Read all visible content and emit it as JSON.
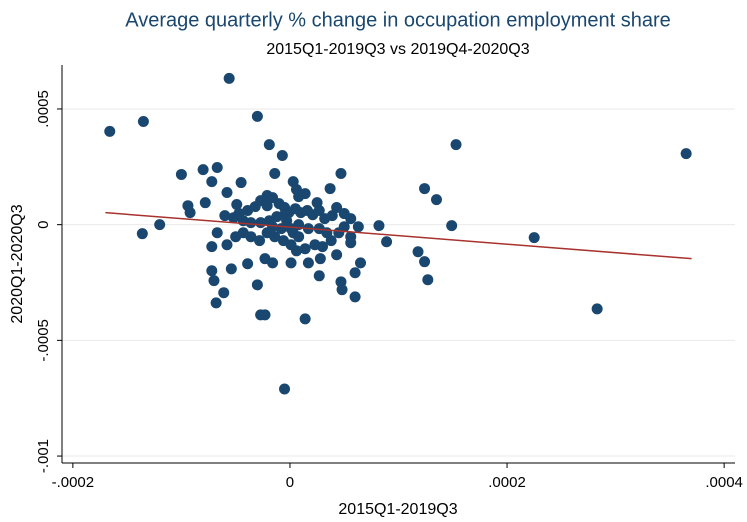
{
  "chart_data": {
    "type": "scatter",
    "title": "Average quarterly % change in occupation employment share",
    "subtitle": "2015Q1-2019Q3 vs 2019Q4-2020Q3",
    "x_label": "2015Q1-2019Q3",
    "y_label": "2020Q1-2020Q3",
    "color": "#1a476f",
    "x": [
      -0.000166,
      -0.000135,
      -0.000136,
      -0.00012,
      -5.6e-05,
      -3e-05,
      -0.0001,
      -8e-05,
      -6.7e-05,
      -7.2e-05,
      -4.5e-05,
      -5.8e-05,
      -1.9e-05,
      -7e-06,
      3e-06,
      -1.4e-05,
      -2.1e-05,
      6e-06,
      4.7e-05,
      3.7e-05,
      1.4e-05,
      -9.4e-05,
      -9.2e-05,
      -7.8e-05,
      -6e-05,
      -5.2e-05,
      -4.7e-05,
      -3.9e-05,
      -3.2e-05,
      -2.7e-05,
      -2.1e-05,
      -1.6e-05,
      -1e-05,
      -5e-06,
      -1e-06,
      5e-06,
      1e-05,
      1.6e-05,
      2.1e-05,
      2.7e-05,
      3.2e-05,
      3.9e-05,
      4.3e-05,
      5e-05,
      5.6e-05,
      5e-05,
      4.5e-05,
      3.8e-05,
      3e-05,
      2.3e-05,
      1.4e-05,
      6e-06,
      1e-06,
      -6e-06,
      -1.4e-05,
      -2.1e-05,
      -2.8e-05,
      -3.6e-05,
      -4.3e-05,
      -5e-05,
      -5.8e-05,
      -6.7e-05,
      -7.2e-05,
      -5.4e-05,
      -3.9e-05,
      -2.3e-05,
      -1.6e-05,
      1e-06,
      1.7e-05,
      2.8e-05,
      4.3e-05,
      6.3e-05,
      5.6e-05,
      5.6e-05,
      8.2e-05,
      8.9e-05,
      6.5e-05,
      6e-05,
      4.7e-05,
      4.8e-05,
      2.7e-05,
      6e-05,
      -7.2e-05,
      -7e-05,
      -6.8e-05,
      -6.1e-05,
      -3e-05,
      -2.7e-05,
      -2.3e-05,
      1.4e-05,
      -5e-06,
      0.000118,
      0.000124,
      0.000127,
      0.000124,
      0.000135,
      0.000149,
      0.000153,
      0.000225,
      0.000283,
      0.000365,
      -1.9e-05,
      -1.2e-05,
      -3e-06,
      8e-06,
      1.7e-05,
      -8e-06,
      3e-06,
      -1.6e-05,
      -2.7e-05,
      -3.6e-05,
      2.7e-05,
      3.4e-05,
      8e-06,
      -5e-06,
      2.5e-05,
      -4.3e-05,
      -4.9e-05,
      8e-06,
      1e-06
    ],
    "values": [
      0.000403,
      0.000446,
      -3.9e-05,
      0,
      0.000632,
      0.000468,
      0.000217,
      0.000238,
      0.000247,
      0.000186,
      0.000182,
      0.000139,
      0.000346,
      0.000299,
      0.000186,
      0.000221,
      0.000126,
      0.000152,
      0.000221,
      0.000156,
      0.000134,
      8.2e-05,
      5.2e-05,
      9.5e-05,
      3.9e-05,
      3e-05,
      4.8e-05,
      6.1e-05,
      7.8e-05,
      0.000104,
      8.2e-05,
      0.000117,
      9.1e-05,
      7.4e-05,
      5.2e-05,
      6.9e-05,
      5.2e-05,
      6.1e-05,
      4.3e-05,
      6.1e-05,
      2.6e-05,
      3.9e-05,
      7.4e-05,
      4.8e-05,
      2.6e-05,
      -9e-06,
      -3.5e-05,
      -6.9e-05,
      -9.5e-05,
      -8.7e-05,
      -0.000104,
      -0.000113,
      -8.7e-05,
      -6.9e-05,
      -5.2e-05,
      -3.5e-05,
      -6.9e-05,
      -5.2e-05,
      -3.5e-05,
      -5.2e-05,
      -8.7e-05,
      -3.5e-05,
      -9.5e-05,
      -0.000191,
      -0.000169,
      -0.000147,
      -0.000165,
      -0.000165,
      -0.000165,
      -0.000147,
      -0.00013,
      -9e-06,
      -5.2e-05,
      -7.8e-05,
      -4e-06,
      -7.4e-05,
      -0.000165,
      -0.000208,
      -0.000247,
      -0.000281,
      -0.000221,
      -0.000312,
      -0.000199,
      -0.000242,
      -0.000338,
      -0.000294,
      -0.00026,
      -0.00039,
      -0.00039,
      -0.000407,
      -0.00071,
      -0.000117,
      0.000156,
      -0.000238,
      -0.00016,
      0.000108,
      -4e-06,
      0.000346,
      -5.6e-05,
      -0.000364,
      0.000307,
      1.7e-05,
      3.5e-05,
      1.7e-05,
      0,
      -1.7e-05,
      -1.7e-05,
      -3.5e-05,
      -9e-06,
      9e-06,
      9e-06,
      -1.7e-05,
      -3.5e-05,
      -5.2e-05,
      4.3e-05,
      9.5e-05,
      1.7e-05,
      8.7e-05,
      0.000121,
      -1.7e-05
    ],
    "fit_line": {
      "color": "#a8322d",
      "x": [
        -0.00017,
        0.00037
      ],
      "values": [
        5.2e-05,
        -0.000147
      ]
    },
    "xlim": [
      -0.00021,
      0.00041
    ],
    "ylim": [
      -0.00103,
      0.00069
    ],
    "xticks": [
      {
        "value": -0.0002,
        "label": "-.0002"
      },
      0,
      {
        "value": 0.0002,
        "label": ".0002"
      },
      {
        "value": 0.0004,
        "label": ".0004"
      }
    ],
    "yticks": [
      {
        "value": -0.001,
        "label": "-.001"
      },
      {
        "value": -0.0005,
        "label": "-.0005"
      },
      0,
      {
        "value": 0.0005,
        "label": ".0005"
      }
    ],
    "grid": true
  }
}
